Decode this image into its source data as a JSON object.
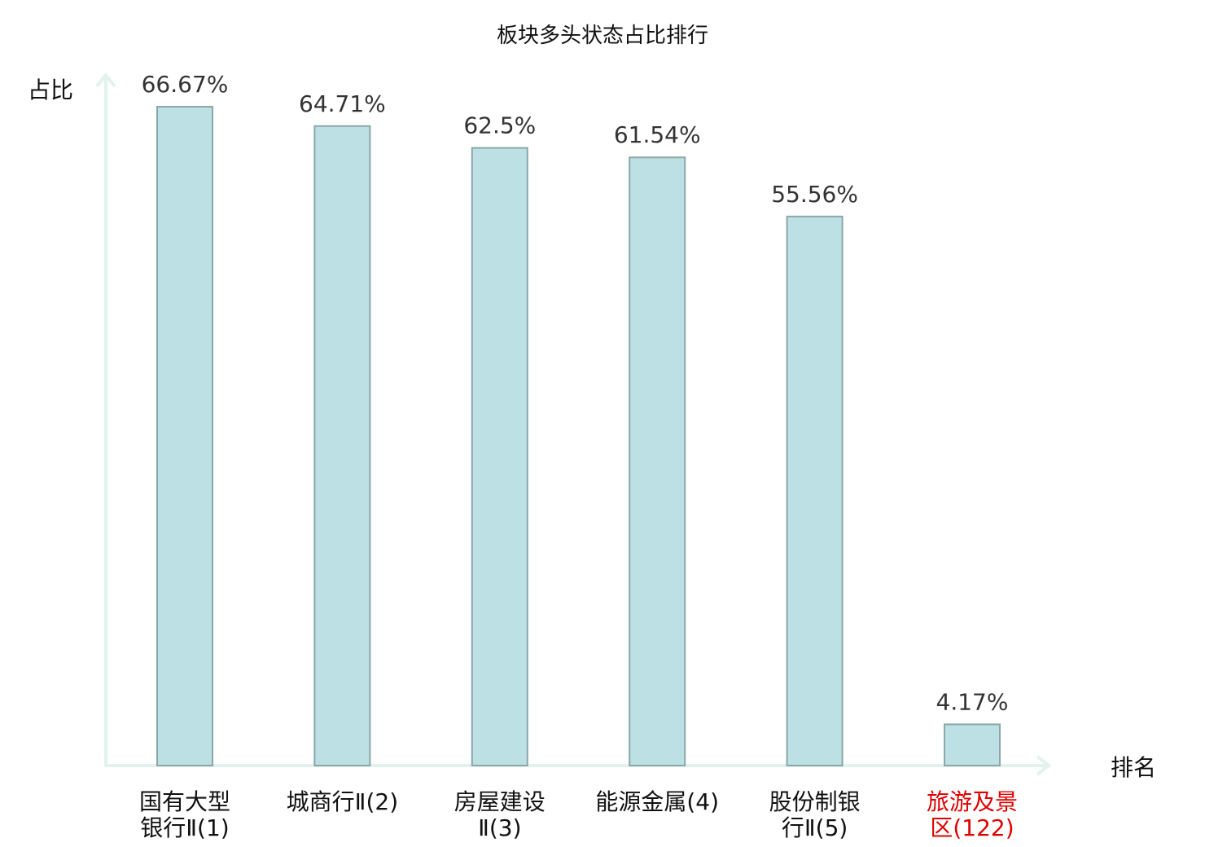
{
  "chart_data": {
    "type": "bar",
    "title": "板块多头状态占比排行",
    "ylabel": "占比",
    "xlabel": "排名",
    "categories": [
      [
        "国有大型",
        "银行Ⅱ(1)"
      ],
      [
        "城商行Ⅱ(2)"
      ],
      [
        "房屋建设",
        "Ⅱ(3)"
      ],
      [
        "能源金属(4)"
      ],
      [
        "股份制银",
        "行Ⅱ(5)"
      ],
      [
        "旅游及景",
        "区(122)"
      ]
    ],
    "values": [
      66.67,
      64.71,
      62.5,
      61.54,
      55.56,
      4.17
    ],
    "value_labels": [
      "66.67%",
      "64.71%",
      "62.5%",
      "61.54%",
      "55.56%",
      "4.17%"
    ],
    "highlight_index": 5,
    "ylim": [
      0,
      70
    ],
    "grid": false,
    "colors": {
      "bar_fill": "#bce0e3",
      "bar_stroke": "#8aa7a9",
      "axis": "#e2f3ef",
      "category_text": "#111111",
      "highlight_text": "#e00000"
    }
  }
}
